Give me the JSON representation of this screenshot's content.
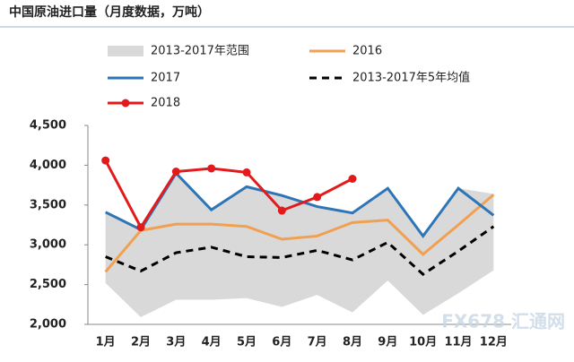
{
  "chart_data": {
    "type": "line",
    "title": "中国原油进口量（月度数据，万吨）",
    "categories": [
      "1月",
      "2月",
      "3月",
      "4月",
      "5月",
      "6月",
      "7月",
      "8月",
      "9月",
      "10月",
      "11月",
      "12月"
    ],
    "ylim": [
      2000,
      4500
    ],
    "yticks": [
      {
        "value": 2000,
        "label": "2,000"
      },
      {
        "value": 2500,
        "label": "2,500"
      },
      {
        "value": 3000,
        "label": "3,000"
      },
      {
        "value": 3500,
        "label": "3,500"
      },
      {
        "value": 4000,
        "label": "4,000"
      },
      {
        "value": 4500,
        "label": "4,500"
      }
    ],
    "range": {
      "name": "2013-2017年范围",
      "color": "#d9d9d9",
      "upper": [
        3400,
        3200,
        3900,
        3450,
        3730,
        3620,
        3480,
        3400,
        3710,
        3100,
        3710,
        3640
      ],
      "lower": [
        2520,
        2090,
        2310,
        2310,
        2330,
        2220,
        2370,
        2150,
        2550,
        2120,
        2390,
        2680
      ]
    },
    "series": [
      {
        "name": "2016",
        "color": "#f0a050",
        "dash": false,
        "markers": false,
        "values": [
          2660,
          3180,
          3260,
          3260,
          3230,
          3070,
          3110,
          3280,
          3310,
          2880,
          3250,
          3630
        ]
      },
      {
        "name": "2017",
        "color": "#2e75b6",
        "dash": false,
        "markers": false,
        "values": [
          3410,
          3190,
          3900,
          3440,
          3730,
          3620,
          3480,
          3400,
          3710,
          3110,
          3710,
          3370
        ]
      },
      {
        "name": "2013-2017年5年均值",
        "color": "#000000",
        "dash": true,
        "markers": false,
        "values": [
          2850,
          2670,
          2900,
          2970,
          2850,
          2840,
          2930,
          2810,
          3030,
          2630,
          2920,
          3230
        ]
      },
      {
        "name": "2018",
        "color": "#e31a1c",
        "dash": false,
        "markers": true,
        "values": [
          4060,
          3220,
          3920,
          3960,
          3910,
          3430,
          3600,
          3830,
          null,
          null,
          null,
          null
        ]
      }
    ],
    "watermark": "FX678 汇通网"
  }
}
